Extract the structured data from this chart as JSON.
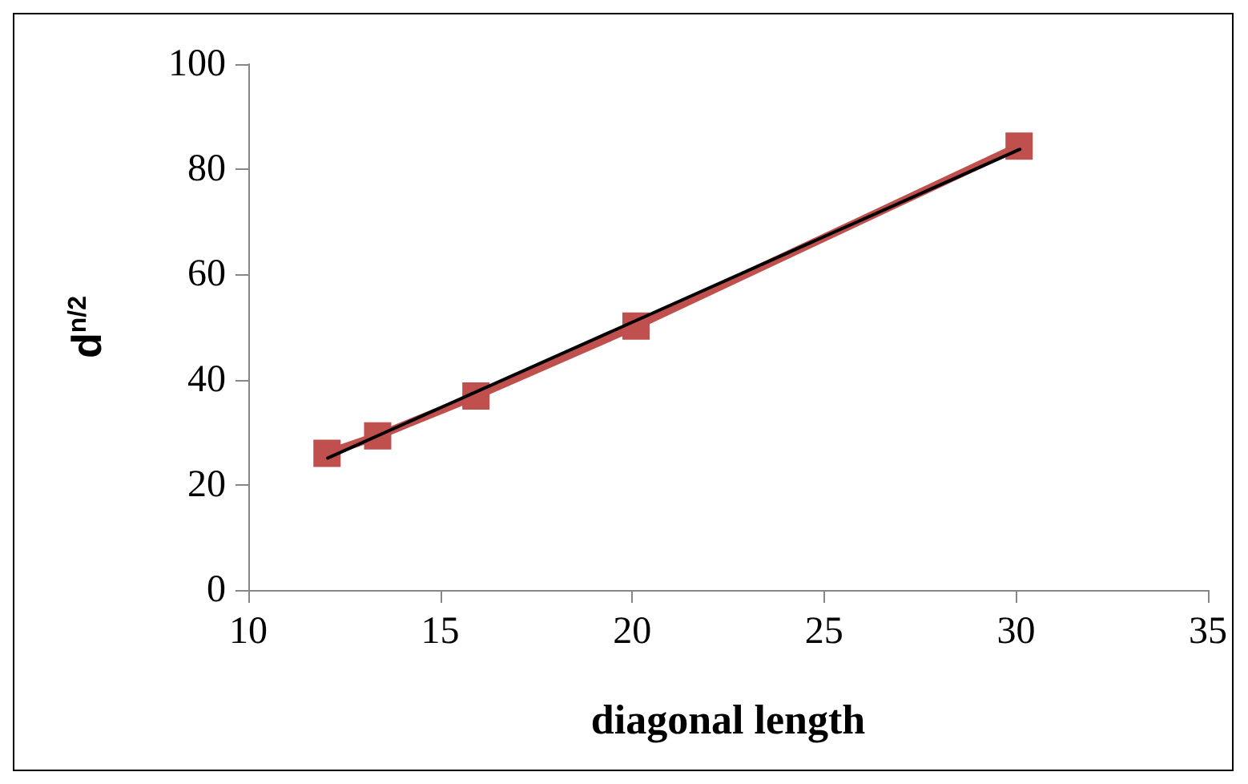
{
  "chart_data": {
    "type": "line",
    "xlabel": "diagonal length",
    "ylabel": "d$^{n/2}$",
    "xlim": [
      10,
      35
    ],
    "xticks": [
      10,
      15,
      20,
      25,
      30,
      35
    ],
    "ylim": [
      0,
      100
    ],
    "yticks": [
      0,
      20,
      40,
      60,
      80,
      100
    ],
    "grid": false,
    "marker": "square",
    "line_style": "solid",
    "series": [
      {
        "color": "#c0504d",
        "x": [
          12.05,
          13.37,
          15.93,
          20.1,
          30.08
        ],
        "values": [
          26.0,
          29.3,
          36.9,
          50.2,
          84.4
        ]
      },
      {
        "color": "#000000",
        "x": [
          12.07,
          30.1
        ],
        "values": [
          25.1,
          83.8
        ],
        "marker": "none"
      }
    ]
  }
}
